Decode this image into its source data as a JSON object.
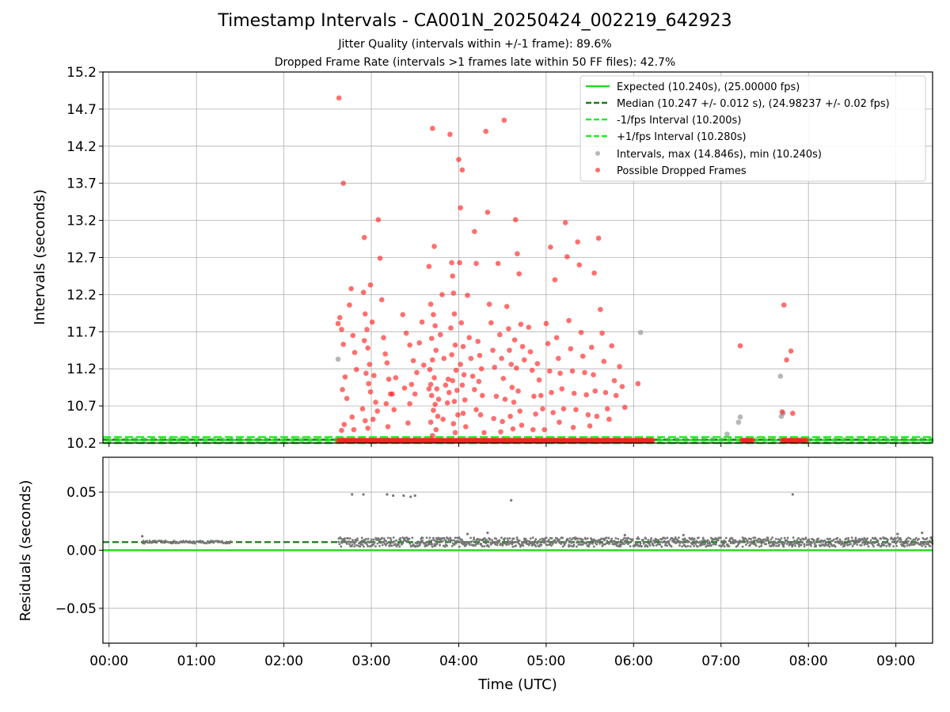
{
  "title": "Timestamp Intervals - CA001N_20250424_002219_642923",
  "subtitle1": "Jitter Quality (intervals within +/-1 frame): 89.6%",
  "subtitle2": "Dropped Frame Rate (intervals >1 frames late within 50 FF files): 42.7%",
  "chart_data": [
    {
      "type": "scatter",
      "ylabel": "Intervals (seconds)",
      "xlim": [
        -0.07,
        9.42
      ],
      "ylim": [
        10.2,
        15.2
      ],
      "x_tick_labels": [
        "00:00",
        "01:00",
        "02:00",
        "03:00",
        "04:00",
        "05:00",
        "06:00",
        "07:00",
        "08:00",
        "09:00"
      ],
      "x_tick_values": [
        0,
        1,
        2,
        3,
        4,
        5,
        6,
        7,
        8,
        9
      ],
      "y_ticks": [
        10.2,
        10.7,
        11.2,
        11.7,
        12.2,
        12.7,
        13.2,
        13.7,
        14.2,
        14.7,
        15.2
      ],
      "grid": true,
      "legend_position": "top-right",
      "colors": {
        "expected": "#22dd22",
        "median": "#1a7a1a",
        "bounds": "#22ee22",
        "intervals": "#999999",
        "dropped": "#ff2222"
      },
      "lines": [
        {
          "name": "Expected (10.240s), (25.00000 fps)",
          "y": 10.24,
          "style": "solid"
        },
        {
          "name": "Median (10.247 +/- 0.012 s), (24.98237 +/- 0.02 fps)",
          "y": 10.247,
          "style": "dashed"
        },
        {
          "name": "-1/fps Interval (10.200s)",
          "y": 10.2,
          "style": "dashed"
        },
        {
          "name": "+1/fps Interval (10.280s)",
          "y": 10.28,
          "style": "dashed"
        }
      ],
      "intervals_series_name": "Intervals, max (14.846s), min (10.240s)",
      "dropped_series_name": "Possible Dropped Frames",
      "intervals_points": [
        [
          2.62,
          11.33
        ],
        [
          6.08,
          11.69
        ],
        [
          7.07,
          10.32
        ],
        [
          7.2,
          10.48
        ],
        [
          7.22,
          10.55
        ],
        [
          7.68,
          11.1
        ],
        [
          7.69,
          10.56
        ],
        [
          7.71,
          10.6
        ]
      ],
      "dropped_points": [
        [
          2.63,
          14.85
        ],
        [
          2.68,
          13.7
        ],
        [
          2.62,
          11.81
        ],
        [
          2.64,
          11.89
        ],
        [
          2.66,
          11.73
        ],
        [
          2.68,
          11.53
        ],
        [
          2.7,
          11.09
        ],
        [
          2.67,
          10.92
        ],
        [
          2.72,
          10.8
        ],
        [
          2.75,
          12.06
        ],
        [
          2.77,
          12.28
        ],
        [
          2.79,
          11.65
        ],
        [
          2.81,
          11.42
        ],
        [
          2.83,
          11.19
        ],
        [
          2.78,
          10.55
        ],
        [
          2.8,
          10.38
        ],
        [
          2.69,
          10.45
        ],
        [
          2.66,
          10.37
        ],
        [
          2.91,
          12.23
        ],
        [
          2.93,
          11.94
        ],
        [
          2.95,
          11.73
        ],
        [
          2.92,
          11.58
        ],
        [
          2.96,
          11.48
        ],
        [
          2.98,
          11.26
        ],
        [
          2.94,
          11.14
        ],
        [
          2.97,
          11.0
        ],
        [
          2.99,
          10.89
        ],
        [
          2.9,
          10.66
        ],
        [
          2.93,
          10.5
        ],
        [
          2.96,
          10.4
        ],
        [
          2.92,
          12.97
        ],
        [
          2.99,
          12.33
        ],
        [
          3.01,
          11.83
        ],
        [
          3.03,
          11.11
        ],
        [
          3.05,
          10.75
        ],
        [
          3.02,
          10.52
        ],
        [
          3.07,
          10.63
        ],
        [
          3.08,
          13.21
        ],
        [
          3.1,
          12.69
        ],
        [
          3.12,
          12.13
        ],
        [
          3.14,
          11.62
        ],
        [
          3.16,
          11.4
        ],
        [
          3.18,
          11.28
        ],
        [
          3.2,
          11.06
        ],
        [
          3.22,
          10.86
        ],
        [
          3.17,
          10.73
        ],
        [
          3.19,
          10.42
        ],
        [
          3.24,
          10.86
        ],
        [
          3.26,
          10.65
        ],
        [
          3.28,
          11.08
        ],
        [
          3.36,
          11.93
        ],
        [
          3.4,
          11.68
        ],
        [
          3.44,
          11.52
        ],
        [
          3.48,
          11.31
        ],
        [
          3.52,
          11.15
        ],
        [
          3.46,
          10.99
        ],
        [
          3.5,
          10.86
        ],
        [
          3.44,
          10.73
        ],
        [
          3.42,
          10.47
        ],
        [
          3.38,
          10.94
        ],
        [
          3.55,
          11.55
        ],
        [
          3.58,
          11.83
        ],
        [
          3.6,
          11.25
        ],
        [
          3.66,
          12.58
        ],
        [
          3.7,
          14.44
        ],
        [
          3.72,
          12.85
        ],
        [
          3.68,
          12.07
        ],
        [
          3.71,
          11.93
        ],
        [
          3.73,
          11.78
        ],
        [
          3.69,
          11.61
        ],
        [
          3.74,
          11.45
        ],
        [
          3.7,
          11.32
        ],
        [
          3.67,
          11.19
        ],
        [
          3.72,
          11.08
        ],
        [
          3.68,
          10.99
        ],
        [
          3.75,
          10.93
        ],
        [
          3.69,
          10.84
        ],
        [
          3.73,
          10.72
        ],
        [
          3.71,
          10.64
        ],
        [
          3.76,
          10.56
        ],
        [
          3.68,
          10.48
        ],
        [
          3.74,
          10.38
        ],
        [
          3.7,
          10.3
        ],
        [
          3.66,
          10.93
        ],
        [
          3.77,
          10.79
        ],
        [
          3.79,
          11.66
        ],
        [
          3.81,
          12.2
        ],
        [
          3.83,
          11.34
        ],
        [
          3.85,
          10.98
        ],
        [
          3.87,
          10.74
        ],
        [
          3.82,
          10.52
        ],
        [
          3.9,
          14.36
        ],
        [
          3.92,
          12.63
        ],
        [
          3.94,
          12.22
        ],
        [
          3.93,
          12.45
        ],
        [
          3.95,
          11.94
        ],
        [
          3.91,
          11.75
        ],
        [
          3.96,
          11.52
        ],
        [
          3.92,
          11.39
        ],
        [
          3.97,
          11.18
        ],
        [
          3.93,
          11.04
        ],
        [
          3.98,
          10.91
        ],
        [
          3.95,
          10.76
        ],
        [
          3.99,
          10.58
        ],
        [
          3.94,
          10.46
        ],
        [
          3.96,
          10.34
        ],
        [
          3.89,
          10.88
        ],
        [
          3.88,
          11.06
        ],
        [
          4.0,
          14.02
        ],
        [
          4.02,
          13.37
        ],
        [
          4.04,
          13.88
        ],
        [
          4.01,
          12.63
        ],
        [
          4.03,
          11.82
        ],
        [
          4.05,
          11.5
        ],
        [
          4.02,
          11.26
        ],
        [
          4.06,
          11.12
        ],
        [
          4.04,
          10.98
        ],
        [
          4.07,
          10.78
        ],
        [
          4.05,
          10.6
        ],
        [
          4.08,
          10.42
        ],
        [
          4.1,
          12.19
        ],
        [
          4.12,
          11.62
        ],
        [
          4.14,
          11.34
        ],
        [
          4.16,
          11.1
        ],
        [
          4.18,
          10.92
        ],
        [
          4.2,
          10.65
        ],
        [
          4.18,
          13.05
        ],
        [
          4.2,
          12.62
        ],
        [
          4.22,
          11.57
        ],
        [
          4.24,
          11.38
        ],
        [
          4.26,
          11.2
        ],
        [
          4.23,
          11.03
        ],
        [
          4.27,
          10.84
        ],
        [
          4.25,
          10.58
        ],
        [
          4.29,
          10.34
        ],
        [
          4.31,
          14.4
        ],
        [
          4.33,
          13.31
        ],
        [
          4.35,
          12.07
        ],
        [
          4.37,
          11.82
        ],
        [
          4.39,
          11.45
        ],
        [
          4.41,
          11.22
        ],
        [
          4.43,
          10.83
        ],
        [
          4.4,
          10.53
        ],
        [
          4.45,
          12.62
        ],
        [
          4.47,
          11.66
        ],
        [
          4.49,
          11.34
        ],
        [
          4.51,
          11.07
        ],
        [
          4.53,
          10.79
        ],
        [
          4.5,
          10.49
        ],
        [
          4.48,
          10.35
        ],
        [
          4.52,
          14.55
        ],
        [
          4.55,
          12.04
        ],
        [
          4.57,
          11.74
        ],
        [
          4.58,
          11.45
        ],
        [
          4.6,
          11.26
        ],
        [
          4.61,
          10.95
        ],
        [
          4.63,
          10.75
        ],
        [
          4.59,
          10.56
        ],
        [
          4.62,
          10.39
        ],
        [
          4.64,
          11.59
        ],
        [
          4.66,
          11.21
        ],
        [
          4.68,
          10.9
        ],
        [
          4.7,
          10.63
        ],
        [
          4.72,
          10.44
        ],
        [
          4.65,
          13.21
        ],
        [
          4.67,
          12.75
        ],
        [
          4.69,
          12.48
        ],
        [
          4.71,
          11.8
        ],
        [
          4.73,
          11.5
        ],
        [
          4.75,
          11.32
        ],
        [
          4.8,
          11.76
        ],
        [
          4.82,
          11.43
        ],
        [
          4.84,
          11.18
        ],
        [
          4.86,
          10.83
        ],
        [
          4.88,
          10.59
        ],
        [
          4.85,
          10.38
        ],
        [
          4.9,
          11.27
        ],
        [
          4.92,
          11.05
        ],
        [
          4.94,
          10.84
        ],
        [
          4.96,
          10.66
        ],
        [
          4.98,
          10.38
        ],
        [
          5.0,
          11.81
        ],
        [
          5.02,
          11.54
        ],
        [
          5.04,
          11.17
        ],
        [
          5.06,
          10.88
        ],
        [
          5.08,
          10.61
        ],
        [
          5.05,
          12.84
        ],
        [
          5.1,
          12.4
        ],
        [
          5.12,
          11.62
        ],
        [
          5.14,
          11.34
        ],
        [
          5.16,
          11.14
        ],
        [
          5.18,
          10.93
        ],
        [
          5.2,
          10.66
        ],
        [
          5.15,
          10.48
        ],
        [
          5.22,
          13.17
        ],
        [
          5.24,
          12.71
        ],
        [
          5.26,
          11.85
        ],
        [
          5.28,
          11.47
        ],
        [
          5.3,
          11.17
        ],
        [
          5.32,
          10.87
        ],
        [
          5.34,
          10.65
        ],
        [
          5.31,
          10.41
        ],
        [
          5.36,
          12.91
        ],
        [
          5.38,
          12.6
        ],
        [
          5.4,
          11.69
        ],
        [
          5.42,
          11.37
        ],
        [
          5.44,
          11.15
        ],
        [
          5.46,
          10.85
        ],
        [
          5.48,
          10.58
        ],
        [
          5.5,
          10.43
        ],
        [
          5.52,
          11.49
        ],
        [
          5.54,
          11.12
        ],
        [
          5.56,
          10.9
        ],
        [
          5.58,
          10.56
        ],
        [
          5.55,
          12.49
        ],
        [
          5.6,
          12.96
        ],
        [
          5.62,
          12.0
        ],
        [
          5.64,
          11.68
        ],
        [
          5.66,
          11.3
        ],
        [
          5.68,
          10.88
        ],
        [
          5.7,
          10.66
        ],
        [
          5.72,
          10.52
        ],
        [
          5.75,
          11.51
        ],
        [
          5.78,
          11.04
        ],
        [
          5.8,
          10.84
        ],
        [
          5.84,
          11.23
        ],
        [
          5.87,
          10.96
        ],
        [
          5.9,
          10.68
        ],
        [
          6.05,
          11.0
        ],
        [
          7.22,
          11.51
        ],
        [
          7.72,
          12.06
        ],
        [
          7.75,
          11.32
        ],
        [
          7.7,
          10.62
        ],
        [
          7.8,
          11.44
        ],
        [
          7.82,
          10.6
        ]
      ],
      "dropped_baseline_ranges": [
        [
          2.62,
          6.22
        ],
        [
          7.24,
          7.36
        ],
        [
          7.7,
          7.98
        ]
      ]
    },
    {
      "type": "scatter",
      "xlabel": "Time (UTC)",
      "ylabel": "Residuals (seconds)",
      "xlim": [
        -0.07,
        9.42
      ],
      "ylim": [
        -0.08,
        0.08
      ],
      "x_tick_labels": [
        "00:00",
        "01:00",
        "02:00",
        "03:00",
        "04:00",
        "05:00",
        "06:00",
        "07:00",
        "08:00",
        "09:00"
      ],
      "x_tick_values": [
        0,
        1,
        2,
        3,
        4,
        5,
        6,
        7,
        8,
        9
      ],
      "y_ticks": [
        -0.05,
        0.0,
        0.05
      ],
      "y_tick_labels": [
        "−0.05",
        "0.00",
        "0.05"
      ],
      "grid": true,
      "lines": [
        {
          "name": "Expected",
          "y": 0.0,
          "style": "solid"
        },
        {
          "name": "Median",
          "y": 0.007,
          "style": "dashed"
        }
      ],
      "residual_band": {
        "x_start": 0.38,
        "x_end": 9.42,
        "center": 0.007,
        "spread": 0.004
      },
      "outlier_points": [
        [
          0.38,
          0.012
        ],
        [
          2.78,
          0.048
        ],
        [
          2.91,
          0.048
        ],
        [
          3.18,
          0.048
        ],
        [
          3.25,
          0.047
        ],
        [
          3.37,
          0.047
        ],
        [
          3.45,
          0.046
        ],
        [
          3.5,
          0.047
        ],
        [
          4.6,
          0.043
        ],
        [
          7.82,
          0.048
        ],
        [
          4.1,
          0.014
        ],
        [
          4.33,
          0.015
        ],
        [
          5.9,
          0.013
        ],
        [
          6.57,
          0.013
        ],
        [
          9.02,
          0.014
        ],
        [
          9.3,
          0.015
        ]
      ]
    }
  ]
}
